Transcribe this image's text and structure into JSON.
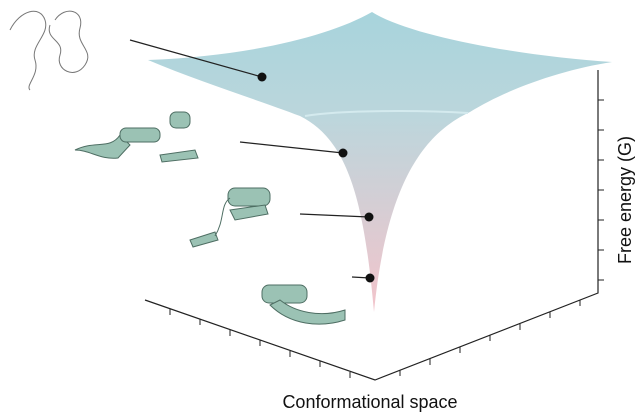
{
  "axes": {
    "x_label": "Conformational space",
    "y_label": "Free energy (G)"
  }
}
